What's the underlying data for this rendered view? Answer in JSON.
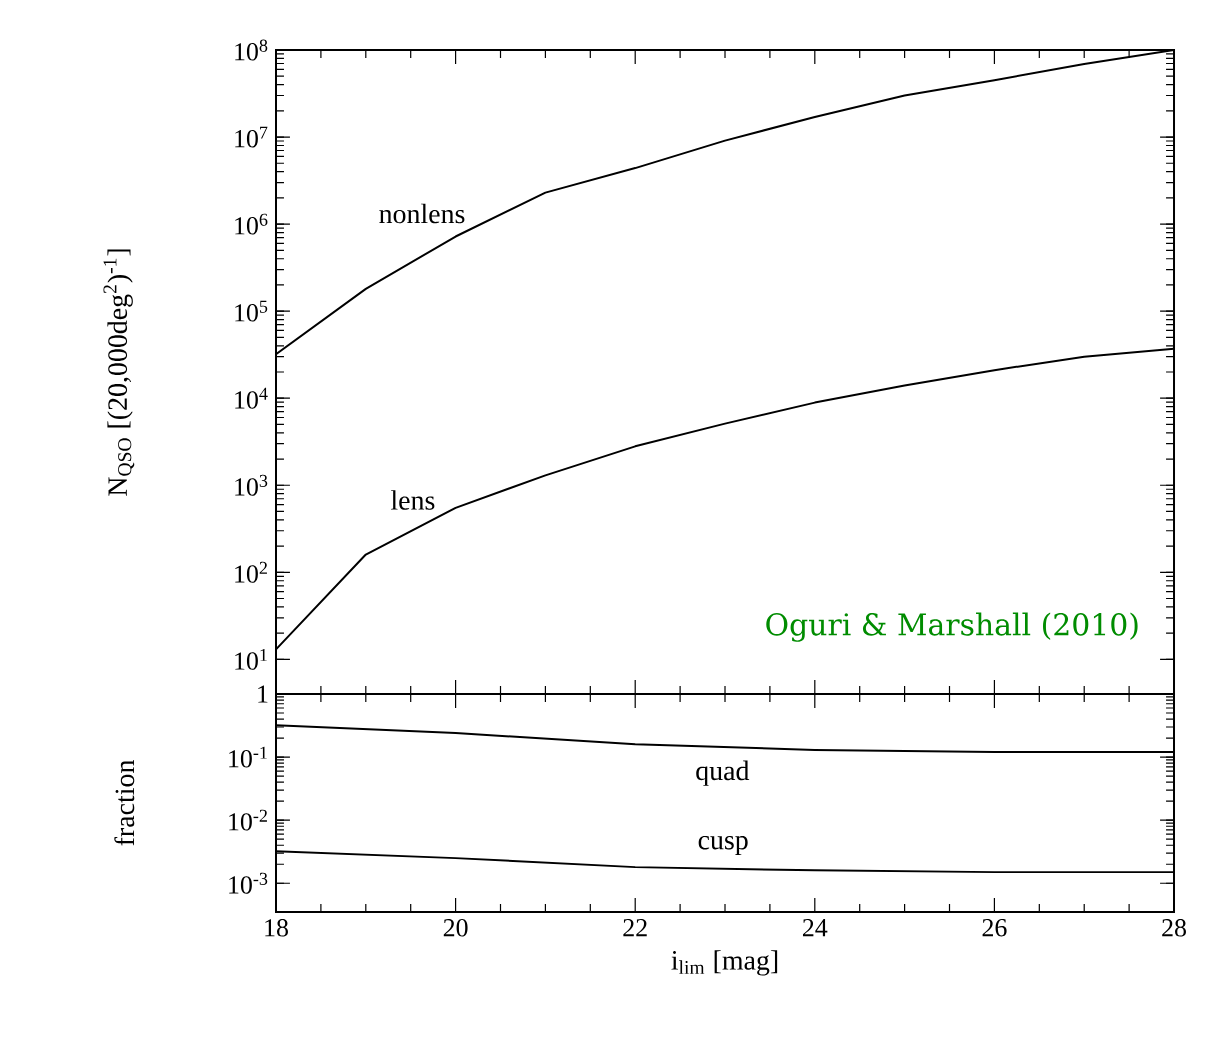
{
  "chart_data": [
    {
      "type": "line",
      "x": [
        18,
        19,
        20,
        21,
        22,
        23,
        24,
        25,
        26,
        27,
        28
      ],
      "ylabel": "N$_{QSO}$ [(20,000deg$^{2}$)$^{-1}$]",
      "log": "y",
      "grid": false,
      "tick_labels": "y",
      "line_style": "solid",
      "marker": "none",
      "xlim": [
        18,
        28
      ],
      "xticks": [
        18,
        20,
        22,
        24,
        26,
        28
      ],
      "ylim": [
        4,
        100000000
      ],
      "yticks": [
        {
          "value": 10,
          "label": "10$^{1}$"
        },
        {
          "value": 100,
          "label": "10$^{2}$"
        },
        {
          "value": 1000,
          "label": "10$^{3}$"
        },
        {
          "value": 10000,
          "label": "10$^{4}$"
        },
        {
          "value": 100000,
          "label": "10$^{5}$"
        },
        {
          "value": 1000000,
          "label": "10$^{6}$"
        },
        {
          "value": 10000000,
          "label": "10$^{7}$"
        },
        {
          "value": 100000000,
          "label": "10$^{8}$"
        }
      ],
      "annotations": [
        "Oguri & Marshall (2010)"
      ],
      "series": [
        {
          "name": "nonlens",
          "color": "#000000",
          "values": [
            32000,
            180000,
            720000,
            2300000,
            4400000,
            9100000,
            17000000,
            30000000,
            45000000,
            69000000,
            100000000
          ]
        },
        {
          "name": "lens",
          "color": "#000000",
          "values": [
            13,
            160,
            550,
            1300,
            2800,
            5100,
            8900,
            14000,
            21000,
            30000,
            37000
          ]
        }
      ]
    },
    {
      "type": "line",
      "x": [
        18,
        20,
        22,
        24,
        26,
        28
      ],
      "xlabel": "i$_{lim}$ [mag]",
      "ylabel": "fraction",
      "log": "y",
      "grid": false,
      "line_style": "solid",
      "marker": "none",
      "xlim": [
        18,
        28
      ],
      "xticks": [
        18,
        20,
        22,
        24,
        26,
        28
      ],
      "ylim": [
        0.00035,
        1
      ],
      "yticks": [
        {
          "value": 0.001,
          "label": "10$^{-3}$"
        },
        {
          "value": 0.01,
          "label": "10$^{-2}$"
        },
        {
          "value": 0.1,
          "label": "10$^{-1}$"
        },
        1
      ],
      "series": [
        {
          "name": "quad",
          "color": "#000000",
          "values": [
            0.32,
            0.24,
            0.16,
            0.13,
            0.12,
            0.12
          ]
        },
        {
          "name": "cusp",
          "color": "#000000",
          "values": [
            0.0032,
            0.0025,
            0.0018,
            0.0016,
            0.0015,
            0.0015
          ]
        }
      ]
    }
  ]
}
